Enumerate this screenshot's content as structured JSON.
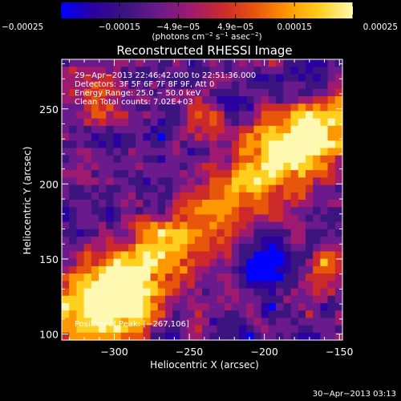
{
  "chart_data": {
    "type": "heatmap",
    "title": "Reconstructed RHESSI Image",
    "xlabel": "Heliocentric X (arcsec)",
    "ylabel": "Heliocentric Y (arcsec)",
    "xlim": [
      -335,
      -148
    ],
    "ylim": [
      96,
      283
    ],
    "x_ticks": [
      -300,
      -250,
      -200,
      -150
    ],
    "x_tick_labels": [
      "−300",
      "−250",
      "−200",
      "−150"
    ],
    "y_ticks": [
      100,
      150,
      200,
      250
    ],
    "y_tick_labels": [
      "100",
      "150",
      "200",
      "250"
    ],
    "colorbar": {
      "range": [
        -0.00025,
        0.00025
      ],
      "ticks": [
        -0.00025,
        -0.00015,
        -4.9e-05,
        4.9e-05,
        0.00015,
        0.00025
      ],
      "tick_labels": [
        "−0.00025",
        "−0.00015",
        "−4.9e−05",
        "4.9e−05",
        "0.00015",
        "0.00025"
      ],
      "unit_base": "(photons cm",
      "unit_exp1": "−2",
      "unit_mid1": " s",
      "unit_exp2": "−1",
      "unit_mid2": " asec",
      "unit_exp3": "−2",
      "unit_end": ")"
    },
    "colormap": [
      "#0000ff",
      "#2a00a0",
      "#3c1480",
      "#6a1a8a",
      "#9e1a70",
      "#cc2a2a",
      "#e8560c",
      "#ff9800",
      "#ffd020",
      "#fff8b0"
    ],
    "info_lines": [
      "29−Apr−2013 22:46:42.000 to 22:51:36.000",
      "Detectors: 3F 5F 6F 7F 8F 9F, Att 0",
      "Energy Range: 25.0 − 50.0 keV",
      "Clean    Total counts: 7.02E+03"
    ],
    "peak_label": "Position of Peak: [−267,106]",
    "peak_position": [
      -267,
      106
    ],
    "timestamp": "30−Apr−2013 03:13"
  }
}
